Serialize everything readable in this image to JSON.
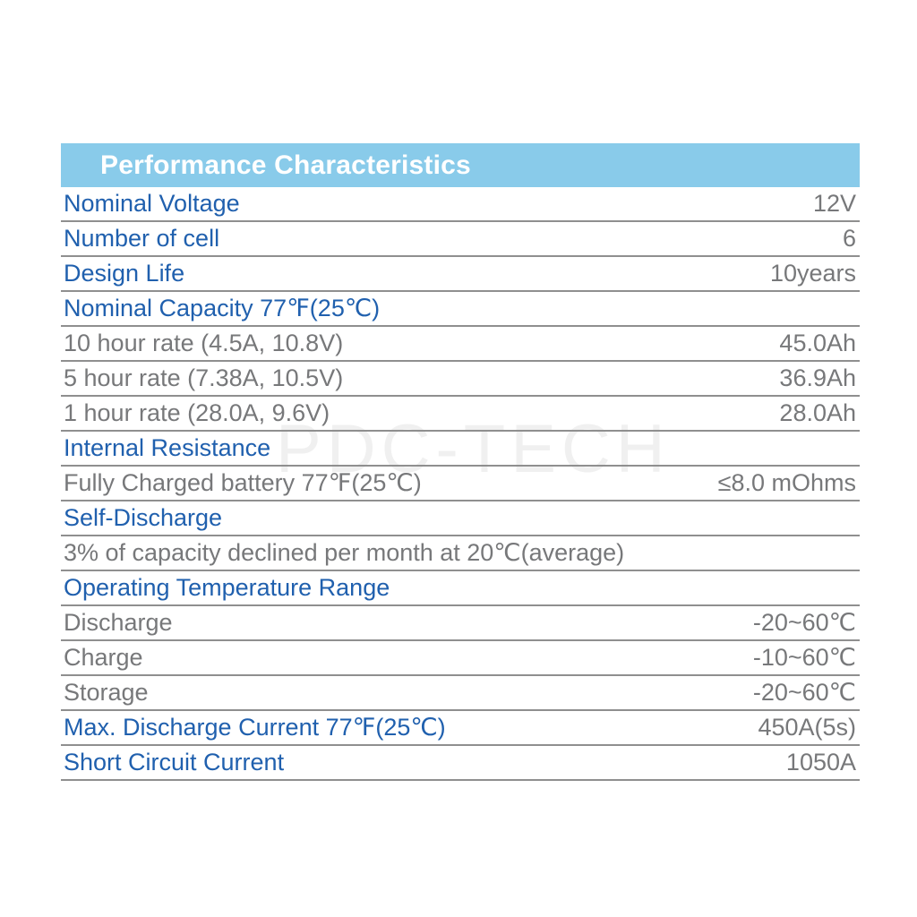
{
  "watermark": "PDC-TECH",
  "colors": {
    "header_background": "#89CBEA",
    "header_text": "#FFFFFF",
    "label_accent_blue": "#2060AE",
    "value_text_gray": "#77787a",
    "divider_gray": "#8f8f8f"
  },
  "table": {
    "title": "Performance Characteristics",
    "rows": [
      {
        "label": "Nominal Voltage",
        "value": "12V",
        "style": "blue"
      },
      {
        "label": "Number of cell",
        "value": "6",
        "style": "blue"
      },
      {
        "label": "Design Life",
        "value": "10years",
        "style": "blue"
      },
      {
        "label": "Nominal Capacity 77℉(25℃)",
        "value": "",
        "style": "blue"
      },
      {
        "label": "10 hour rate (4.5A, 10.8V)",
        "value": "45.0Ah",
        "style": "gray"
      },
      {
        "label": "5 hour rate (7.38A, 10.5V)",
        "value": "36.9Ah",
        "style": "gray"
      },
      {
        "label": "1 hour rate (28.0A, 9.6V)",
        "value": "28.0Ah",
        "style": "gray"
      },
      {
        "label": "Internal Resistance",
        "value": "",
        "style": "blue"
      },
      {
        "label": "Fully Charged battery 77℉(25℃)",
        "value": "≤8.0 mOhms",
        "style": "gray"
      },
      {
        "label": "Self-Discharge",
        "value": "",
        "style": "blue"
      },
      {
        "label": "3% of capacity declined per month at 20℃(average)",
        "value": "",
        "style": "gray"
      },
      {
        "label": "Operating Temperature Range",
        "value": "",
        "style": "blue"
      },
      {
        "label": "Discharge",
        "value": "-20~60℃",
        "style": "gray"
      },
      {
        "label": "Charge",
        "value": "-10~60℃",
        "style": "gray"
      },
      {
        "label": "Storage",
        "value": "-20~60℃",
        "style": "gray"
      },
      {
        "label": "Max. Discharge Current 77℉(25℃)",
        "value": "450A(5s)",
        "style": "blue"
      },
      {
        "label": "Short Circuit Current",
        "value": "1050A",
        "style": "blue"
      }
    ]
  }
}
